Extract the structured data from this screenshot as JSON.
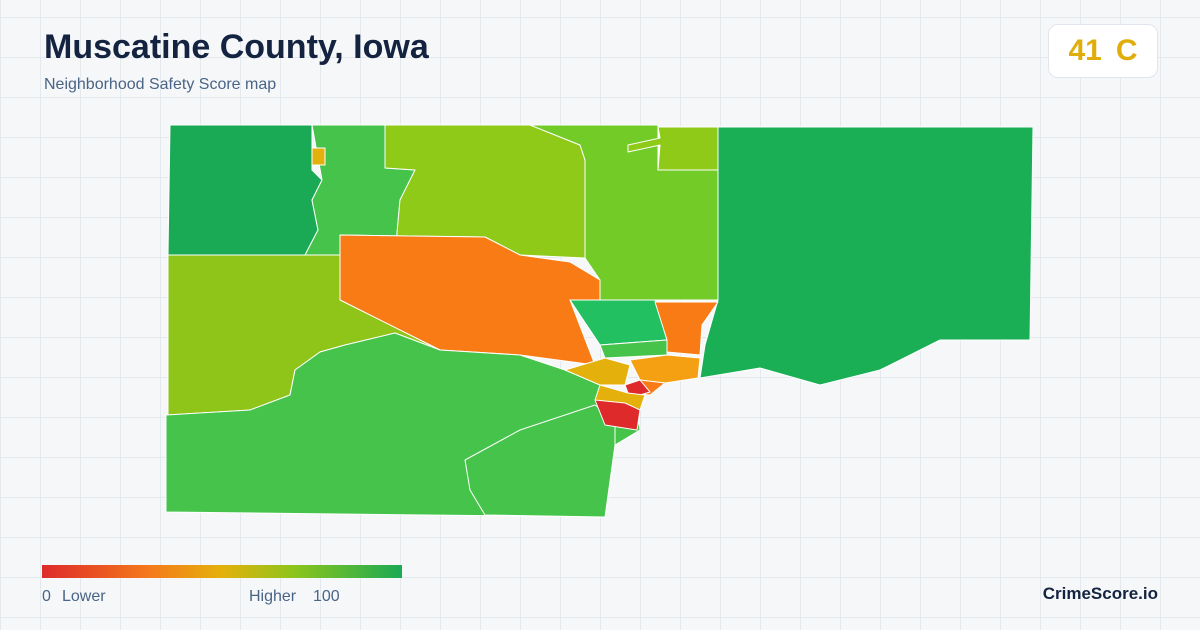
{
  "header": {
    "title": "Muscatine County, Iowa",
    "subtitle": "Neighborhood Safety Score map"
  },
  "score": {
    "value": 41,
    "grade": "C"
  },
  "legend": {
    "min": 0,
    "min_label": "Lower",
    "max_label": "Higher",
    "max": 100
  },
  "brand": "CrimeScore.io"
}
